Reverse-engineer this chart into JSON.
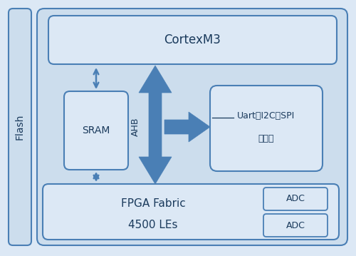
{
  "fig_bg": "#dce8f5",
  "outer_fill": "#ccdded",
  "box_fill": "#dce8f5",
  "edge_color": "#4a7fb5",
  "arrow_color": "#4a7fb5",
  "text_color": "#1a3a5c",
  "flash_label": "Flash",
  "cortex_label": "CortexM3",
  "sram_label": "SRAM",
  "uart_line1": "Uart、I2C、SPI",
  "uart_line2": "等外设",
  "fpga_line1": "FPGA Fabric",
  "fpga_line2": "4500 LEs",
  "adc_label": "ADC",
  "ahb_label": "AHB"
}
